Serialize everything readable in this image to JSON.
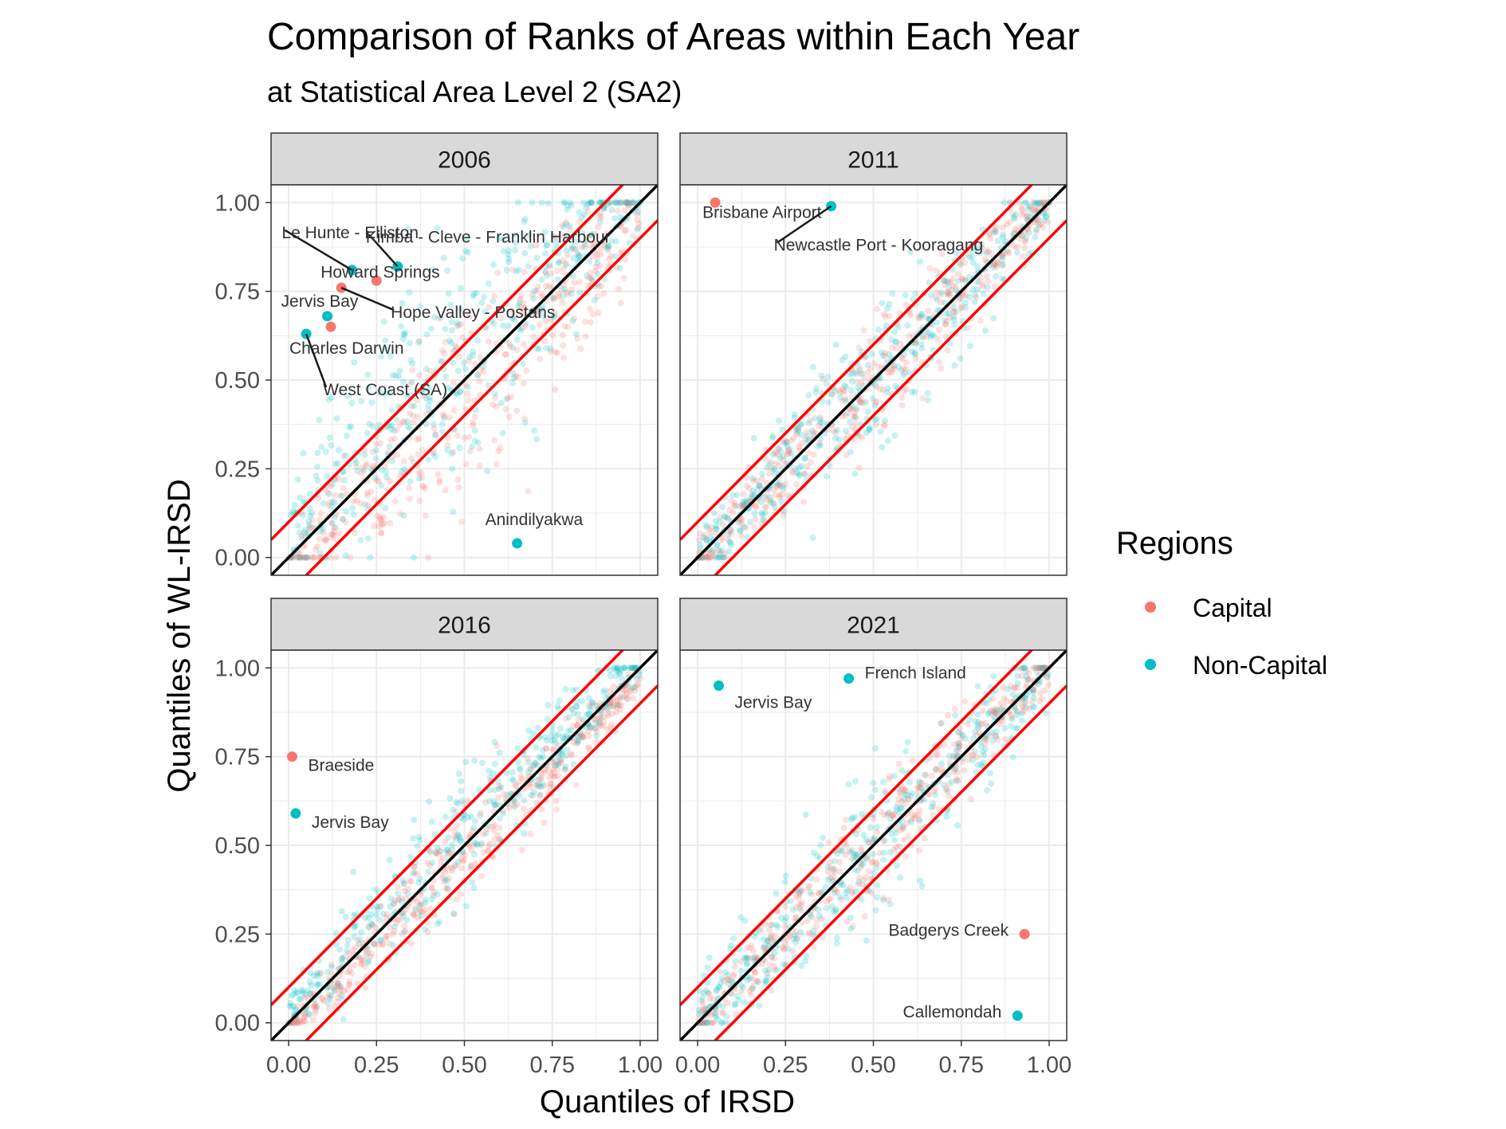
{
  "chart_data": {
    "type": "scatter",
    "title": "Comparison of Ranks of Areas within Each Year",
    "subtitle": "at Statistical Area Level 2 (SA2)",
    "xlabel": "Quantiles of IRSD",
    "ylabel": "Quantiles of WL-IRSD",
    "xlim": [
      -0.05,
      1.05
    ],
    "ylim": [
      -0.05,
      1.05
    ],
    "x_ticks": [
      "0.00",
      "0.25",
      "0.50",
      "0.75",
      "1.00"
    ],
    "y_ticks": [
      "0.00",
      "0.25",
      "0.50",
      "0.75",
      "1.00"
    ],
    "grid": true,
    "legend": {
      "title": "Regions",
      "position": "right",
      "entries": [
        {
          "name": "Capital",
          "color": "#F8766D"
        },
        {
          "name": "Non-Capital",
          "color": "#00BFC4"
        }
      ]
    },
    "reference_lines": [
      {
        "slope": 1,
        "intercept": 0,
        "color": "#000000"
      },
      {
        "slope": 1,
        "intercept": 0.1,
        "color": "#FF0000"
      },
      {
        "slope": 1,
        "intercept": -0.1,
        "color": "#FF0000"
      }
    ],
    "panels": [
      {
        "year": "2006",
        "labeled_points": [
          {
            "label": "Le Hunte - Elliston",
            "x": 0.18,
            "y": 0.81,
            "region": "Non-Capital"
          },
          {
            "label": "Kimba - Cleve - Franklin Harbour",
            "x": 0.31,
            "y": 0.82,
            "region": "Non-Capital"
          },
          {
            "label": "Howard Springs",
            "x": 0.25,
            "y": 0.78,
            "region": "Capital"
          },
          {
            "label": "Hope Valley - Postans",
            "x": 0.15,
            "y": 0.76,
            "region": "Capital"
          },
          {
            "label": "Jervis Bay",
            "x": 0.11,
            "y": 0.68,
            "region": "Non-Capital"
          },
          {
            "label": "Charles Darwin",
            "x": 0.12,
            "y": 0.65,
            "region": "Capital"
          },
          {
            "label": "West Coast (SA)",
            "x": 0.05,
            "y": 0.63,
            "region": "Non-Capital"
          },
          {
            "label": "Anindilyakwa",
            "x": 0.65,
            "y": 0.04,
            "region": "Non-Capital"
          }
        ]
      },
      {
        "year": "2011",
        "labeled_points": [
          {
            "label": "Brisbane Airport",
            "x": 0.05,
            "y": 1.0,
            "region": "Capital"
          },
          {
            "label": "Newcastle Port - Kooragang",
            "x": 0.38,
            "y": 0.99,
            "region": "Non-Capital"
          }
        ]
      },
      {
        "year": "2016",
        "labeled_points": [
          {
            "label": "Braeside",
            "x": 0.01,
            "y": 0.75,
            "region": "Capital"
          },
          {
            "label": "Jervis Bay",
            "x": 0.02,
            "y": 0.59,
            "region": "Non-Capital"
          }
        ]
      },
      {
        "year": "2021",
        "labeled_points": [
          {
            "label": "Jervis Bay",
            "x": 0.06,
            "y": 0.95,
            "region": "Non-Capital"
          },
          {
            "label": "French Island",
            "x": 0.43,
            "y": 0.97,
            "region": "Non-Capital"
          },
          {
            "label": "Badgerys Creek",
            "x": 0.93,
            "y": 0.25,
            "region": "Capital"
          },
          {
            "label": "Callemondah",
            "x": 0.91,
            "y": 0.02,
            "region": "Non-Capital"
          }
        ]
      }
    ]
  }
}
